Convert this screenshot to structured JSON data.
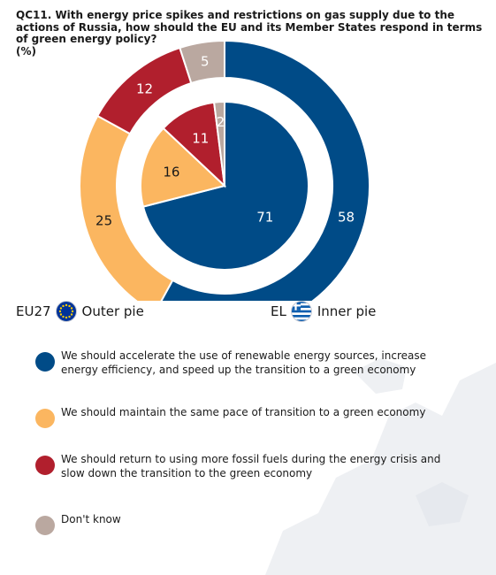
{
  "title": "QC11. With energy price spikes and restrictions on gas supply due to the actions of Russia, how should the EU and its Member States respond in terms of green energy policy?",
  "unit": "(%)",
  "legend_head": {
    "outer": {
      "code": "EU27",
      "label": "Outer pie",
      "flag_icon": "eu-flag-icon"
    },
    "inner": {
      "code": "EL",
      "label": "Inner pie",
      "flag_icon": "greece-flag-icon"
    }
  },
  "legend": [
    {
      "label": "We should accelerate the use of renewable energy sources, increase energy efficiency, and speed up the transition to a green economy",
      "color": "#004b87"
    },
    {
      "label": "We should maintain the same pace of transition to a green economy",
      "color": "#fbb660"
    },
    {
      "label": "We should return to using more fossil fuels during the energy crisis and slow down the transition to the green economy",
      "color": "#b11f2d"
    },
    {
      "label": "Don't know",
      "color": "#baa8a0"
    }
  ],
  "chart_data": {
    "type": "pie",
    "title": "QC11. With energy price spikes and restrictions on gas supply due to the actions of Russia, how should the EU and its Member States respond in terms of green energy policy?",
    "unit": "%",
    "categories": [
      "We should accelerate the use of renewable energy sources, increase energy efficiency, and speed up the transition to a green economy",
      "We should maintain the same pace of transition to a green economy",
      "We should return to using more fossil fuels during the energy crisis and slow down the transition to the green economy",
      "Don't know"
    ],
    "series": [
      {
        "name": "EU27",
        "ring": "outer",
        "values": [
          58,
          25,
          12,
          5
        ]
      },
      {
        "name": "EL",
        "ring": "inner",
        "values": [
          71,
          16,
          11,
          2
        ]
      }
    ],
    "colors": [
      "#004b87",
      "#fbb660",
      "#b11f2d",
      "#baa8a0"
    ]
  }
}
